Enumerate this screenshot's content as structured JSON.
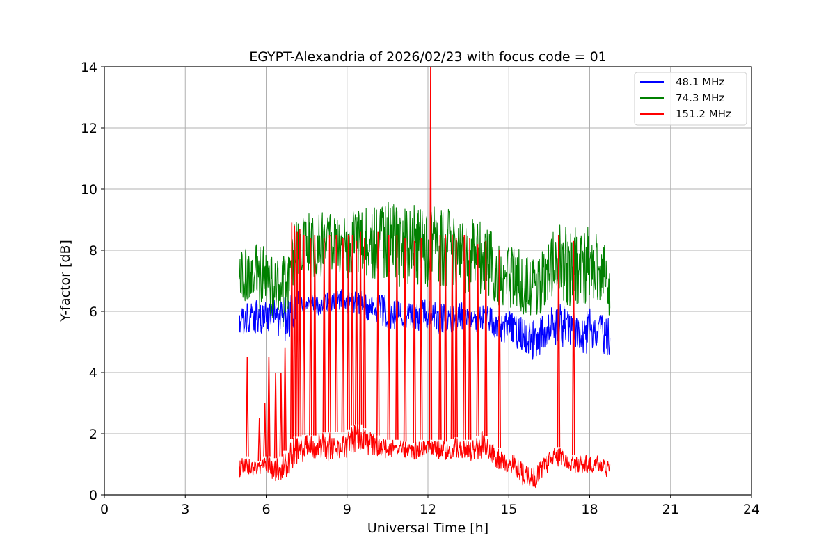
{
  "chart_data": {
    "type": "line",
    "title": "EGYPT-Alexandria of 2026/02/23 with focus code = 01",
    "xlabel": "Universal Time [h]",
    "ylabel": "Y-factor [dB]",
    "xlim": [
      0,
      24
    ],
    "ylim": [
      0,
      14
    ],
    "xticks": [
      0,
      3,
      6,
      9,
      12,
      15,
      18,
      21,
      24
    ],
    "yticks": [
      0,
      2,
      4,
      6,
      8,
      10,
      12,
      14
    ],
    "grid": true,
    "legend_position": "top-right",
    "series": [
      {
        "name": " 48.1 MHz",
        "color": "#0000ff",
        "x": [
          5.0,
          5.25,
          5.5,
          5.75,
          6.0,
          6.25,
          6.5,
          6.75,
          7.0,
          7.25,
          7.5,
          7.75,
          8.0,
          8.25,
          8.5,
          8.75,
          9.0,
          9.25,
          9.5,
          9.75,
          10.0,
          10.25,
          10.5,
          10.75,
          11.0,
          11.25,
          11.5,
          11.75,
          12.0,
          12.25,
          12.5,
          12.75,
          13.0,
          13.25,
          13.5,
          13.75,
          14.0,
          14.25,
          14.5,
          14.75,
          15.0,
          15.25,
          15.5,
          15.75,
          16.0,
          16.25,
          16.5,
          16.75,
          17.0,
          17.25,
          17.5,
          17.75,
          18.0,
          18.25,
          18.5,
          18.75
        ],
        "y_low": [
          5.2,
          5.3,
          5.3,
          5.2,
          5.3,
          5.2,
          5.1,
          5.0,
          5.3,
          5.8,
          5.9,
          5.9,
          5.8,
          5.9,
          6.0,
          6.0,
          5.9,
          5.9,
          5.8,
          5.6,
          5.6,
          5.5,
          5.4,
          5.4,
          5.4,
          5.4,
          5.3,
          5.4,
          5.4,
          5.3,
          5.2,
          5.3,
          5.3,
          5.4,
          5.3,
          5.3,
          5.3,
          5.3,
          5.1,
          5.0,
          4.8,
          4.8,
          4.6,
          4.4,
          4.3,
          4.5,
          4.6,
          4.8,
          4.8,
          4.6,
          4.6,
          4.6,
          4.6,
          4.7,
          4.6,
          4.4
        ],
        "y_high": [
          6.0,
          6.3,
          6.3,
          6.4,
          6.3,
          6.4,
          6.4,
          6.5,
          6.8,
          6.6,
          6.4,
          6.6,
          6.5,
          6.6,
          6.7,
          6.8,
          6.6,
          6.7,
          6.8,
          6.6,
          6.6,
          6.6,
          6.5,
          6.4,
          6.4,
          6.3,
          6.3,
          6.4,
          6.4,
          6.3,
          6.3,
          6.2,
          6.3,
          6.3,
          6.2,
          6.2,
          6.2,
          6.2,
          6.1,
          6.0,
          6.0,
          6.0,
          5.8,
          5.7,
          5.8,
          5.9,
          6.1,
          6.3,
          6.2,
          6.0,
          6.0,
          6.0,
          6.1,
          6.0,
          5.9,
          5.9
        ]
      },
      {
        "name": " 74.3 MHz",
        "color": "#008000",
        "x": [
          5.0,
          5.25,
          5.5,
          5.75,
          6.0,
          6.25,
          6.5,
          6.75,
          7.0,
          7.25,
          7.5,
          7.75,
          8.0,
          8.25,
          8.5,
          8.75,
          9.0,
          9.25,
          9.5,
          9.75,
          10.0,
          10.25,
          10.5,
          10.75,
          11.0,
          11.25,
          11.5,
          11.75,
          12.0,
          12.25,
          12.5,
          12.75,
          13.0,
          13.25,
          13.5,
          13.75,
          14.0,
          14.25,
          14.5,
          14.75,
          15.0,
          15.25,
          15.5,
          15.75,
          16.0,
          16.25,
          16.5,
          16.75,
          17.0,
          17.25,
          17.5,
          17.75,
          18.0,
          18.25,
          18.5,
          18.75
        ],
        "y_low": [
          6.2,
          6.3,
          6.2,
          6.0,
          5.9,
          5.6,
          5.4,
          5.3,
          6.4,
          7.0,
          7.1,
          7.0,
          7.0,
          7.1,
          7.2,
          7.1,
          7.0,
          7.0,
          7.0,
          6.9,
          7.0,
          7.0,
          7.0,
          6.8,
          6.8,
          6.7,
          6.7,
          6.8,
          6.7,
          6.8,
          6.8,
          6.7,
          6.6,
          6.6,
          6.5,
          6.6,
          6.5,
          6.4,
          6.2,
          6.1,
          6.0,
          6.0,
          5.9,
          5.9,
          5.8,
          6.0,
          6.2,
          6.4,
          6.3,
          6.1,
          6.1,
          6.0,
          6.1,
          6.2,
          6.0,
          5.8
        ],
        "y_high": [
          7.9,
          8.1,
          8.1,
          8.3,
          8.0,
          7.9,
          7.8,
          7.8,
          8.8,
          9.1,
          9.2,
          9.2,
          9.3,
          9.2,
          9.3,
          9.2,
          9.0,
          9.3,
          9.4,
          9.4,
          9.5,
          9.5,
          9.6,
          9.5,
          9.4,
          9.4,
          9.5,
          9.4,
          9.3,
          9.5,
          9.4,
          9.4,
          9.2,
          9.0,
          9.1,
          9.0,
          9.2,
          8.7,
          8.5,
          8.3,
          8.2,
          8.1,
          8.0,
          7.8,
          7.8,
          8.0,
          8.3,
          8.8,
          9.0,
          8.8,
          8.8,
          8.7,
          8.8,
          8.6,
          8.4,
          8.0
        ]
      },
      {
        "name": "151.2 MHz",
        "color": "#ff0000",
        "x": [
          5.0,
          5.25,
          5.5,
          5.75,
          6.0,
          6.25,
          6.5,
          6.75,
          7.0,
          7.25,
          7.5,
          7.75,
          8.0,
          8.25,
          8.5,
          8.75,
          9.0,
          9.25,
          9.5,
          9.75,
          10.0,
          10.25,
          10.5,
          10.75,
          11.0,
          11.25,
          11.5,
          11.75,
          12.0,
          12.25,
          12.5,
          12.75,
          13.0,
          13.25,
          13.5,
          13.75,
          14.0,
          14.25,
          14.5,
          14.75,
          15.0,
          15.25,
          15.5,
          15.75,
          16.0,
          16.25,
          16.5,
          16.75,
          17.0,
          17.25,
          17.5,
          17.75,
          18.0,
          18.25,
          18.5,
          18.75
        ],
        "y_low": [
          0.5,
          0.6,
          0.6,
          0.6,
          0.7,
          0.5,
          0.4,
          0.5,
          0.9,
          1.0,
          1.1,
          1.1,
          1.2,
          1.1,
          1.2,
          1.2,
          1.2,
          1.3,
          1.4,
          1.3,
          1.3,
          1.2,
          1.2,
          1.2,
          1.2,
          1.2,
          1.1,
          1.2,
          1.2,
          1.2,
          1.1,
          1.1,
          1.2,
          1.2,
          1.1,
          1.1,
          1.2,
          1.1,
          0.9,
          0.8,
          0.7,
          0.6,
          0.3,
          0.1,
          0.2,
          0.5,
          0.8,
          0.9,
          0.9,
          0.7,
          0.7,
          0.7,
          0.7,
          0.8,
          0.7,
          0.4
        ],
        "y_high": [
          1.2,
          1.3,
          1.1,
          1.1,
          1.3,
          1.2,
          1.2,
          1.5,
          1.9,
          1.9,
          2.0,
          1.9,
          2.1,
          2.0,
          2.1,
          2.0,
          2.1,
          2.3,
          2.3,
          2.1,
          2.0,
          1.9,
          1.8,
          1.8,
          1.8,
          1.7,
          1.7,
          1.8,
          1.8,
          1.8,
          1.8,
          1.7,
          1.9,
          1.8,
          1.8,
          1.8,
          2.1,
          1.8,
          1.6,
          1.5,
          1.3,
          1.4,
          1.1,
          0.9,
          0.9,
          1.2,
          1.4,
          1.6,
          1.5,
          1.3,
          1.3,
          1.3,
          1.3,
          1.3,
          1.2,
          1.1
        ],
        "spikes": [
          {
            "x": 5.3,
            "y": 4.5
          },
          {
            "x": 5.75,
            "y": 2.5
          },
          {
            "x": 5.95,
            "y": 3.0
          },
          {
            "x": 6.1,
            "y": 4.5
          },
          {
            "x": 6.35,
            "y": 4.0
          },
          {
            "x": 6.55,
            "y": 4.0
          },
          {
            "x": 6.7,
            "y": 4.8
          },
          {
            "x": 6.95,
            "y": 8.9
          },
          {
            "x": 7.05,
            "y": 8.8
          },
          {
            "x": 7.15,
            "y": 8.6
          },
          {
            "x": 7.25,
            "y": 8.7
          },
          {
            "x": 7.4,
            "y": 8.5
          },
          {
            "x": 7.65,
            "y": 8.4
          },
          {
            "x": 7.8,
            "y": 8.5
          },
          {
            "x": 8.15,
            "y": 8.4
          },
          {
            "x": 8.35,
            "y": 8.5
          },
          {
            "x": 8.6,
            "y": 8.5
          },
          {
            "x": 8.85,
            "y": 8.4
          },
          {
            "x": 9.05,
            "y": 8.5
          },
          {
            "x": 9.2,
            "y": 8.5
          },
          {
            "x": 9.35,
            "y": 8.3
          },
          {
            "x": 9.5,
            "y": 8.6
          },
          {
            "x": 9.65,
            "y": 8.4
          },
          {
            "x": 10.15,
            "y": 8.6
          },
          {
            "x": 10.55,
            "y": 8.5
          },
          {
            "x": 10.85,
            "y": 8.5
          },
          {
            "x": 11.15,
            "y": 8.4
          },
          {
            "x": 11.5,
            "y": 8.3
          },
          {
            "x": 11.75,
            "y": 8.4
          },
          {
            "x": 12.1,
            "y": 14.0
          },
          {
            "x": 12.45,
            "y": 8.5
          },
          {
            "x": 12.65,
            "y": 8.5
          },
          {
            "x": 12.9,
            "y": 8.5
          },
          {
            "x": 13.05,
            "y": 8.4
          },
          {
            "x": 13.35,
            "y": 8.5
          },
          {
            "x": 13.55,
            "y": 8.4
          },
          {
            "x": 13.85,
            "y": 8.2
          },
          {
            "x": 14.15,
            "y": 8.3
          },
          {
            "x": 14.65,
            "y": 8.0
          },
          {
            "x": 16.85,
            "y": 8.5
          },
          {
            "x": 17.4,
            "y": 8.3
          }
        ]
      }
    ]
  }
}
